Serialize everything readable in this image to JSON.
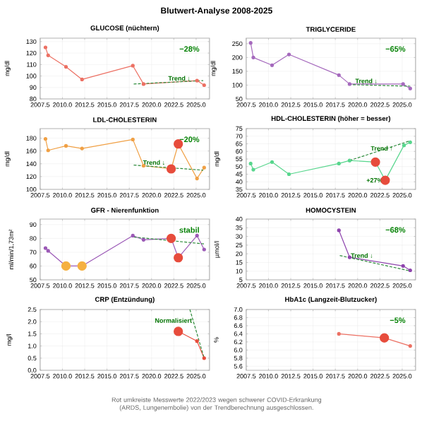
{
  "chart_data": [
    {
      "type": "line",
      "title": "GLUCOSE (nüchtern)",
      "ylabel": "mg/dl",
      "grid": true,
      "marker": "circle",
      "xlim": [
        2007.5,
        2026.5
      ],
      "xticks": [
        {
          "value": 2007.5,
          "label": "2007.5"
        },
        {
          "value": 2010,
          "label": "2010.0"
        },
        {
          "value": 2012.5,
          "label": "2012.5"
        },
        {
          "value": 2015,
          "label": "2015.0"
        },
        {
          "value": 2017.5,
          "label": "2017.5"
        },
        {
          "value": 2020,
          "label": "2020.0"
        },
        {
          "value": 2022.5,
          "label": "2022.5"
        },
        {
          "value": 2025,
          "label": "2025.0"
        }
      ],
      "ylim": [
        80,
        133
      ],
      "yticks": [
        80,
        90,
        100,
        110,
        120,
        130
      ],
      "series": [
        {
          "color": "#ec7063",
          "x": [
            2008.1,
            2008.4,
            2010.4,
            2012.2,
            2017.9,
            2019.1,
            2025.1,
            2025.9
          ],
          "values": [
            125,
            118,
            108,
            97,
            109,
            93,
            96,
            92
          ]
        },
        {
          "type": "line",
          "line_style": "dashed",
          "marker": "none",
          "color": "#2e8b3c",
          "x": [
            2018,
            2025.8
          ],
          "values": [
            93,
            96
          ]
        }
      ],
      "annotations": [
        "−28%",
        {
          "text": "Trend ↓",
          "x": 2021.6,
          "y": 98
        }
      ]
    },
    {
      "type": "line",
      "title": "TRIGLYCERIDE",
      "ylabel": "mg/dl",
      "grid": true,
      "marker": "circle",
      "xlim": [
        2007.5,
        2026.5
      ],
      "xticks": [
        {
          "value": 2007.5,
          "label": "2007.5"
        },
        {
          "value": 2010,
          "label": "2010.0"
        },
        {
          "value": 2012.5,
          "label": "2012.5"
        },
        {
          "value": 2015,
          "label": "2015.0"
        },
        {
          "value": 2017.5,
          "label": "2017.5"
        },
        {
          "value": 2020,
          "label": "2020.0"
        },
        {
          "value": 2022.5,
          "label": "2022.5"
        },
        {
          "value": 2025,
          "label": "2025.0"
        }
      ],
      "ylim": [
        50,
        270
      ],
      "yticks": [
        50,
        100,
        150,
        200,
        250
      ],
      "series": [
        {
          "color": "#a569bd",
          "x": [
            2008.0,
            2008.3,
            2010.4,
            2012.3,
            2017.9,
            2019.1,
            2025.1,
            2025.9
          ],
          "values": [
            253,
            200,
            172,
            211,
            136,
            104,
            104,
            88
          ]
        },
        {
          "type": "line",
          "line_style": "dashed",
          "marker": "none",
          "color": "#2e8b3c",
          "x": [
            2019,
            2025.9
          ],
          "values": [
            102,
            96
          ]
        }
      ],
      "annotations": [
        "−65%",
        {
          "text": "Trend ↓",
          "x": 2022.5,
          "y": 115
        }
      ]
    },
    {
      "type": "line",
      "title": "LDL-CHOLESTERIN",
      "ylabel": "mg/dl",
      "grid": true,
      "marker": "circle",
      "xlim": [
        2007.5,
        2026.5
      ],
      "xticks": [
        {
          "value": 2007.5,
          "label": "2007.5"
        },
        {
          "value": 2010,
          "label": "2010.0"
        },
        {
          "value": 2012.5,
          "label": "2012.5"
        },
        {
          "value": 2015,
          "label": "2015.0"
        },
        {
          "value": 2017.5,
          "label": "2017.5"
        },
        {
          "value": 2020,
          "label": "2020.0"
        },
        {
          "value": 2022.5,
          "label": "2022.5"
        },
        {
          "value": 2025,
          "label": "2025.0"
        }
      ],
      "ylim": [
        100,
        195
      ],
      "yticks": [
        100,
        120,
        140,
        160,
        180
      ],
      "series": [
        {
          "color": "#f0a045",
          "x": [
            2008.1,
            2008.4,
            2010.4,
            2012.2,
            2017.9,
            2019.1,
            2022.2,
            2023.0,
            2025.1,
            2025.9
          ],
          "values": [
            179,
            161,
            168,
            164,
            178,
            137,
            132,
            171,
            117,
            134
          ]
        },
        {
          "type": "line",
          "line_style": "dashed",
          "marker": "none",
          "color": "#2e8b3c",
          "x": [
            2018,
            2025.8
          ],
          "values": [
            138,
            130
          ]
        },
        {
          "type": "scatter",
          "marker": "circle",
          "color": "#e74c3c",
          "x": [
            2022.2,
            2023.0
          ],
          "values": [
            132,
            171
          ]
        }
      ],
      "annotations": [
        "−20%",
        {
          "text": "Trend ↓",
          "x": 2021.8,
          "y": 142
        }
      ]
    },
    {
      "type": "line",
      "title": "HDL-CHOLESTERIN (höher = besser)",
      "ylabel": "mg/dl",
      "grid": true,
      "marker": "circle",
      "xlim": [
        2007.5,
        2026.5
      ],
      "xticks": [
        {
          "value": 2007.5,
          "label": "2007.5"
        },
        {
          "value": 2010,
          "label": "2010.0"
        },
        {
          "value": 2012.5,
          "label": "2012.5"
        },
        {
          "value": 2015,
          "label": "2015.0"
        },
        {
          "value": 2017.5,
          "label": "2017.5"
        },
        {
          "value": 2020,
          "label": "2020.0"
        },
        {
          "value": 2022.5,
          "label": "2022.5"
        },
        {
          "value": 2025,
          "label": "2025.0"
        }
      ],
      "ylim": [
        35,
        75
      ],
      "yticks": [
        35,
        40,
        45,
        50,
        55,
        60,
        65,
        70,
        75
      ],
      "series": [
        {
          "color": "#58d68d",
          "x": [
            2008.0,
            2008.3,
            2010.4,
            2012.3,
            2017.9,
            2019.1,
            2022.0,
            2023.1,
            2025.2,
            2025.9
          ],
          "values": [
            52,
            48,
            53,
            45,
            52,
            54,
            53,
            41,
            64,
            66
          ]
        },
        {
          "type": "line",
          "line_style": "dashed",
          "marker": "none",
          "color": "#2e8b3c",
          "x": [
            2019.1,
            2025.9
          ],
          "values": [
            54,
            67
          ]
        },
        {
          "type": "scatter",
          "marker": "circle",
          "color": "#e74c3c",
          "x": [
            2022.0,
            2023.1
          ],
          "values": [
            53,
            41
          ]
        }
      ],
      "annotations": [
        {
          "text": "Trend ↑",
          "x": 2021.2,
          "y": 62
        },
        {
          "text": "+27%",
          "x": 2023.1,
          "y": 41
        }
      ]
    },
    {
      "type": "line",
      "title": "GFR - Nierenfunktion",
      "ylabel": "ml/min/1,73m²",
      "grid": true,
      "marker": "circle",
      "xlim": [
        2007.5,
        2026.5
      ],
      "xticks": [
        {
          "value": 2007.5,
          "label": "2007.5"
        },
        {
          "value": 2010,
          "label": "2010.0"
        },
        {
          "value": 2012.5,
          "label": "2012.5"
        },
        {
          "value": 2015,
          "label": "2015.0"
        },
        {
          "value": 2017.5,
          "label": "2017.5"
        },
        {
          "value": 2020,
          "label": "2020.0"
        },
        {
          "value": 2022.5,
          "label": "2022.5"
        },
        {
          "value": 2025,
          "label": "2025.0"
        }
      ],
      "ylim": [
        50,
        94
      ],
      "yticks": [
        50,
        60,
        70,
        80,
        90
      ],
      "series": [
        {
          "color": "#9b59b6",
          "x": [
            2008.1,
            2008.4,
            2010.4,
            2012.2,
            2017.9,
            2019.1,
            2022.2,
            2023.0,
            2025.1,
            2025.9
          ],
          "values": [
            73,
            71,
            60,
            60,
            82,
            79,
            80,
            66,
            82,
            72
          ]
        },
        {
          "type": "line",
          "line_style": "dashed",
          "marker": "none",
          "color": "#2e8b3c",
          "x": [
            2018,
            2025.9
          ],
          "values": [
            81,
            76
          ]
        },
        {
          "type": "scatter",
          "marker": "circle",
          "color": "#e74c3c",
          "x": [
            2022.2,
            2023.0
          ],
          "values": [
            80,
            66
          ]
        },
        {
          "type": "scatter",
          "marker": "circle",
          "color": "#f5b041",
          "x": [
            2010.4,
            2012.2
          ],
          "values": [
            60,
            60
          ]
        }
      ],
      "annotations": [
        "stabil"
      ]
    },
    {
      "type": "line",
      "title": "HOMOCYSTEIN",
      "ylabel": "µmol/l",
      "grid": true,
      "marker": "circle",
      "xlim": [
        2007.5,
        2026.5
      ],
      "xticks": [
        {
          "value": 2007.5,
          "label": "2007.5"
        },
        {
          "value": 2010,
          "label": "2010.0"
        },
        {
          "value": 2012.5,
          "label": "2012.5"
        },
        {
          "value": 2015,
          "label": "2015.0"
        },
        {
          "value": 2017.5,
          "label": "2017.5"
        },
        {
          "value": 2020,
          "label": "2020.0"
        },
        {
          "value": 2022.5,
          "label": "2022.5"
        },
        {
          "value": 2025,
          "label": "2025.0"
        }
      ],
      "ylim": [
        5,
        40
      ],
      "yticks": [
        5,
        10,
        15,
        20,
        25,
        30,
        35,
        40
      ],
      "series": [
        {
          "color": "#8e44ad",
          "x": [
            2017.9,
            2019.1,
            2025.1,
            2025.9
          ],
          "values": [
            33.5,
            18,
            13,
            10.5
          ]
        },
        {
          "type": "line",
          "line_style": "dashed",
          "marker": "none",
          "color": "#2e8b3c",
          "x": [
            2018,
            2026
          ],
          "values": [
            19,
            10
          ]
        }
      ],
      "annotations": [
        "−68%",
        {
          "text": "Trend ↓",
          "x": 2022,
          "y": 19
        }
      ]
    },
    {
      "type": "line",
      "title": "CRP (Entzündung)",
      "ylabel": "mg/l",
      "grid": true,
      "marker": "circle",
      "xlim": [
        2007.5,
        2026.5
      ],
      "xticks": [
        {
          "value": 2007.5,
          "label": "2007.5"
        },
        {
          "value": 2010,
          "label": "2010.0"
        },
        {
          "value": 2012.5,
          "label": "2012.5"
        },
        {
          "value": 2015,
          "label": "2015.0"
        },
        {
          "value": 2017.5,
          "label": "2017.5"
        },
        {
          "value": 2020,
          "label": "2020.0"
        },
        {
          "value": 2022.5,
          "label": "2022.5"
        },
        {
          "value": 2025,
          "label": "2025.0"
        }
      ],
      "ylim": [
        0,
        2.5
      ],
      "yticks": [
        {
          "value": 0,
          "label": "0.0"
        },
        {
          "value": 0.5,
          "label": "0.5"
        },
        {
          "value": 1,
          "label": "1.0"
        },
        {
          "value": 1.5,
          "label": "1.5"
        },
        {
          "value": 2,
          "label": "2.0"
        },
        {
          "value": 2.5,
          "label": "2.5"
        }
      ],
      "series": [
        {
          "color": "#e74c3c",
          "x": [
            2023.0,
            2025.1,
            2025.9
          ],
          "values": [
            1.6,
            1.2,
            0.5
          ]
        },
        {
          "type": "line",
          "line_style": "dashed",
          "marker": "none",
          "color": "#2e8b3c",
          "x": [
            2024.3,
            2025.9
          ],
          "values": [
            2.5,
            0.5
          ]
        },
        {
          "type": "scatter",
          "marker": "circle",
          "color": "#e74c3c",
          "x": [
            2023.0
          ],
          "values": [
            1.6
          ]
        }
      ],
      "annotations": [
        {
          "text": "Normalisiert",
          "x": 2024.8,
          "y": 2.05
        }
      ]
    },
    {
      "type": "line",
      "title": "HbA1c (Langzeit-Blutzucker)",
      "ylabel": "%",
      "grid": true,
      "marker": "circle",
      "xlim": [
        2007.5,
        2026.5
      ],
      "xticks": [
        {
          "value": 2007.5,
          "label": "2007.5"
        },
        {
          "value": 2010,
          "label": "2010.0"
        },
        {
          "value": 2012.5,
          "label": "2012.5"
        },
        {
          "value": 2015,
          "label": "2015.0"
        },
        {
          "value": 2017.5,
          "label": "2017.5"
        },
        {
          "value": 2020,
          "label": "2020.0"
        },
        {
          "value": 2022.5,
          "label": "2022.5"
        },
        {
          "value": 2025,
          "label": "2025.0"
        }
      ],
      "ylim": [
        5.5,
        7.0
      ],
      "yticks": [
        {
          "value": 5.6,
          "label": "5.6"
        },
        {
          "value": 5.8,
          "label": "5.8"
        },
        {
          "value": 6.0,
          "label": "6.0"
        },
        {
          "value": 6.2,
          "label": "6.2"
        },
        {
          "value": 6.4,
          "label": "6.4"
        },
        {
          "value": 6.6,
          "label": "6.6"
        },
        {
          "value": 6.8,
          "label": "6.8"
        },
        {
          "value": 7.0,
          "label": "7.0"
        }
      ],
      "series": [
        {
          "color": "#ec7063",
          "x": [
            2017.9,
            2023.0,
            2025.9
          ],
          "values": [
            6.4,
            6.3,
            6.1
          ]
        },
        {
          "type": "scatter",
          "marker": "circle",
          "color": "#e74c3c",
          "x": [
            2023.0
          ],
          "values": [
            6.3
          ]
        }
      ],
      "annotations": [
        "−5%"
      ]
    },
    {
      "type": "other",
      "title": "Blutwert-Analyse 2008-2025",
      "annotations": [
        "Rot umkreiste Messwerte 2022/2023 wegen schwerer COVID-Erkrankung (ARDS, Lungenembolie) von der Trendberechnung ausgeschlossen."
      ]
    }
  ]
}
